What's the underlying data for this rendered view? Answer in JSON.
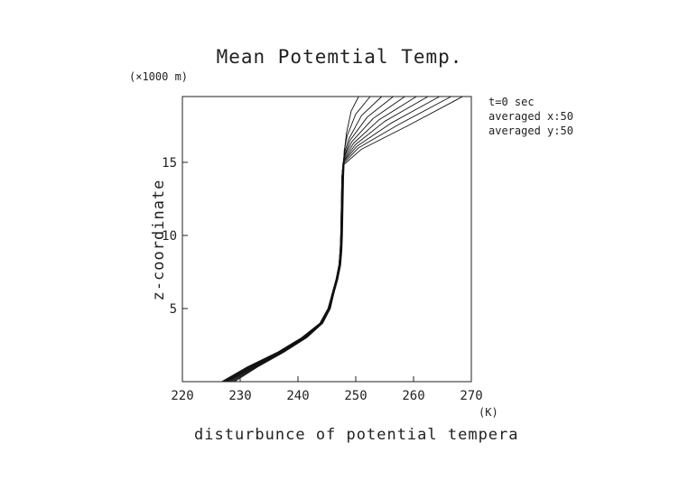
{
  "chart_data": {
    "type": "line",
    "title": "Mean Potemtial Temp.",
    "y_unit_label": "(×1000 m)",
    "xlabel": "disturbunce of potential tempera",
    "x_unit_label": "(K)",
    "ylabel": "z-coordinate",
    "xlim": [
      220,
      270
    ],
    "ylim": [
      0,
      19.5
    ],
    "x_ticks": [
      220,
      230,
      240,
      250,
      260,
      270
    ],
    "y_ticks": [
      5,
      10,
      15
    ],
    "annotations": [
      "t=0 sec",
      "averaged  x:50",
      "averaged  y:50"
    ],
    "grid": false,
    "series": [
      {
        "top_x": 250.5,
        "points": [
          [
            229.0,
            0
          ],
          [
            233.0,
            1
          ],
          [
            237.5,
            2
          ],
          [
            241.5,
            3
          ],
          [
            244.3,
            4
          ],
          [
            245.6,
            5
          ],
          [
            246.2,
            6
          ],
          [
            246.9,
            7
          ],
          [
            247.4,
            8
          ],
          [
            247.6,
            9
          ],
          [
            247.7,
            10
          ],
          [
            247.8,
            12
          ],
          [
            247.9,
            14
          ],
          [
            248.1,
            16
          ],
          [
            248.4,
            17
          ],
          [
            249.2,
            18.5
          ],
          [
            250.5,
            19.5
          ]
        ]
      },
      {
        "top_x": 252.5,
        "points": [
          [
            228.7,
            0
          ],
          [
            232.8,
            1
          ],
          [
            237.3,
            2
          ],
          [
            241.4,
            3
          ],
          [
            244.2,
            4
          ],
          [
            245.6,
            5
          ],
          [
            246.1,
            6
          ],
          [
            246.8,
            7
          ],
          [
            247.3,
            8
          ],
          [
            247.5,
            9
          ],
          [
            247.6,
            10
          ],
          [
            247.7,
            12
          ],
          [
            247.8,
            14
          ],
          [
            248.0,
            15.8
          ],
          [
            248.5,
            16.8
          ],
          [
            250.0,
            18.3
          ],
          [
            252.5,
            19.5
          ]
        ]
      },
      {
        "top_x": 254.5,
        "points": [
          [
            228.4,
            0
          ],
          [
            232.6,
            1
          ],
          [
            237.1,
            2
          ],
          [
            241.3,
            3
          ],
          [
            244.2,
            4
          ],
          [
            245.5,
            5
          ],
          [
            246.1,
            6
          ],
          [
            246.8,
            7
          ],
          [
            247.3,
            8
          ],
          [
            247.5,
            9
          ],
          [
            247.6,
            10
          ],
          [
            247.7,
            12
          ],
          [
            247.8,
            14
          ],
          [
            248.0,
            15.6
          ],
          [
            248.8,
            16.6
          ],
          [
            251.0,
            18.2
          ],
          [
            254.5,
            19.5
          ]
        ]
      },
      {
        "top_x": 256.5,
        "points": [
          [
            228.1,
            0
          ],
          [
            232.4,
            1
          ],
          [
            237.0,
            2
          ],
          [
            241.2,
            3
          ],
          [
            244.1,
            4
          ],
          [
            245.5,
            5
          ],
          [
            246.1,
            6
          ],
          [
            246.8,
            7
          ],
          [
            247.3,
            8
          ],
          [
            247.5,
            9
          ],
          [
            247.6,
            10
          ],
          [
            247.7,
            12
          ],
          [
            247.8,
            14
          ],
          [
            248.0,
            15.4
          ],
          [
            249.0,
            16.5
          ],
          [
            252.0,
            18.1
          ],
          [
            256.5,
            19.5
          ]
        ]
      },
      {
        "top_x": 258.5,
        "points": [
          [
            227.8,
            0
          ],
          [
            232.2,
            1
          ],
          [
            236.9,
            2
          ],
          [
            241.1,
            3
          ],
          [
            244.0,
            4
          ],
          [
            245.4,
            5
          ],
          [
            246.0,
            6
          ],
          [
            246.7,
            7
          ],
          [
            247.2,
            8
          ],
          [
            247.4,
            9
          ],
          [
            247.5,
            10
          ],
          [
            247.6,
            12
          ],
          [
            247.7,
            14
          ],
          [
            247.9,
            15.3
          ],
          [
            249.3,
            16.4
          ],
          [
            253.0,
            18.0
          ],
          [
            258.5,
            19.5
          ]
        ]
      },
      {
        "top_x": 260.5,
        "points": [
          [
            227.6,
            0
          ],
          [
            232.0,
            1
          ],
          [
            236.8,
            2
          ],
          [
            241.0,
            3
          ],
          [
            244.0,
            4
          ],
          [
            245.4,
            5
          ],
          [
            246.0,
            6
          ],
          [
            246.7,
            7
          ],
          [
            247.2,
            8
          ],
          [
            247.4,
            9
          ],
          [
            247.5,
            10
          ],
          [
            247.6,
            12
          ],
          [
            247.7,
            14
          ],
          [
            247.9,
            15.2
          ],
          [
            249.6,
            16.3
          ],
          [
            254.0,
            17.9
          ],
          [
            260.5,
            19.5
          ]
        ]
      },
      {
        "top_x": 262.5,
        "points": [
          [
            227.4,
            0
          ],
          [
            231.8,
            1
          ],
          [
            236.7,
            2
          ],
          [
            240.9,
            3
          ],
          [
            243.9,
            4
          ],
          [
            245.3,
            5
          ],
          [
            246.0,
            6
          ],
          [
            246.7,
            7
          ],
          [
            247.2,
            8
          ],
          [
            247.4,
            9
          ],
          [
            247.5,
            10
          ],
          [
            247.6,
            12
          ],
          [
            247.7,
            14
          ],
          [
            247.9,
            15.1
          ],
          [
            249.9,
            16.2
          ],
          [
            255.0,
            17.8
          ],
          [
            262.5,
            19.5
          ]
        ]
      },
      {
        "top_x": 264.5,
        "points": [
          [
            227.2,
            0
          ],
          [
            231.6,
            1
          ],
          [
            236.6,
            2
          ],
          [
            240.8,
            3
          ],
          [
            243.9,
            4
          ],
          [
            245.3,
            5
          ],
          [
            245.9,
            6
          ],
          [
            246.6,
            7
          ],
          [
            247.1,
            8
          ],
          [
            247.3,
            9
          ],
          [
            247.4,
            10
          ],
          [
            247.5,
            12
          ],
          [
            247.6,
            14
          ],
          [
            247.8,
            15.0
          ],
          [
            250.2,
            16.1
          ],
          [
            256.2,
            17.7
          ],
          [
            264.5,
            19.5
          ]
        ]
      },
      {
        "top_x": 266.5,
        "points": [
          [
            227.0,
            0
          ],
          [
            231.4,
            1
          ],
          [
            236.5,
            2
          ],
          [
            240.7,
            3
          ],
          [
            243.8,
            4
          ],
          [
            245.2,
            5
          ],
          [
            245.9,
            6
          ],
          [
            246.6,
            7
          ],
          [
            247.1,
            8
          ],
          [
            247.3,
            9
          ],
          [
            247.4,
            10
          ],
          [
            247.5,
            12
          ],
          [
            247.6,
            14
          ],
          [
            247.8,
            14.9
          ],
          [
            250.5,
            16.0
          ],
          [
            257.5,
            17.6
          ],
          [
            266.5,
            19.5
          ]
        ]
      },
      {
        "top_x": 268.5,
        "points": [
          [
            226.8,
            0
          ],
          [
            231.2,
            1
          ],
          [
            236.4,
            2
          ],
          [
            240.6,
            3
          ],
          [
            243.8,
            4
          ],
          [
            245.2,
            5
          ],
          [
            245.9,
            6
          ],
          [
            246.6,
            7
          ],
          [
            247.1,
            8
          ],
          [
            247.3,
            9
          ],
          [
            247.4,
            10
          ],
          [
            247.5,
            12
          ],
          [
            247.6,
            14
          ],
          [
            247.8,
            14.8
          ],
          [
            251.0,
            15.9
          ],
          [
            259.0,
            17.5
          ],
          [
            268.5,
            19.5
          ]
        ]
      }
    ]
  }
}
